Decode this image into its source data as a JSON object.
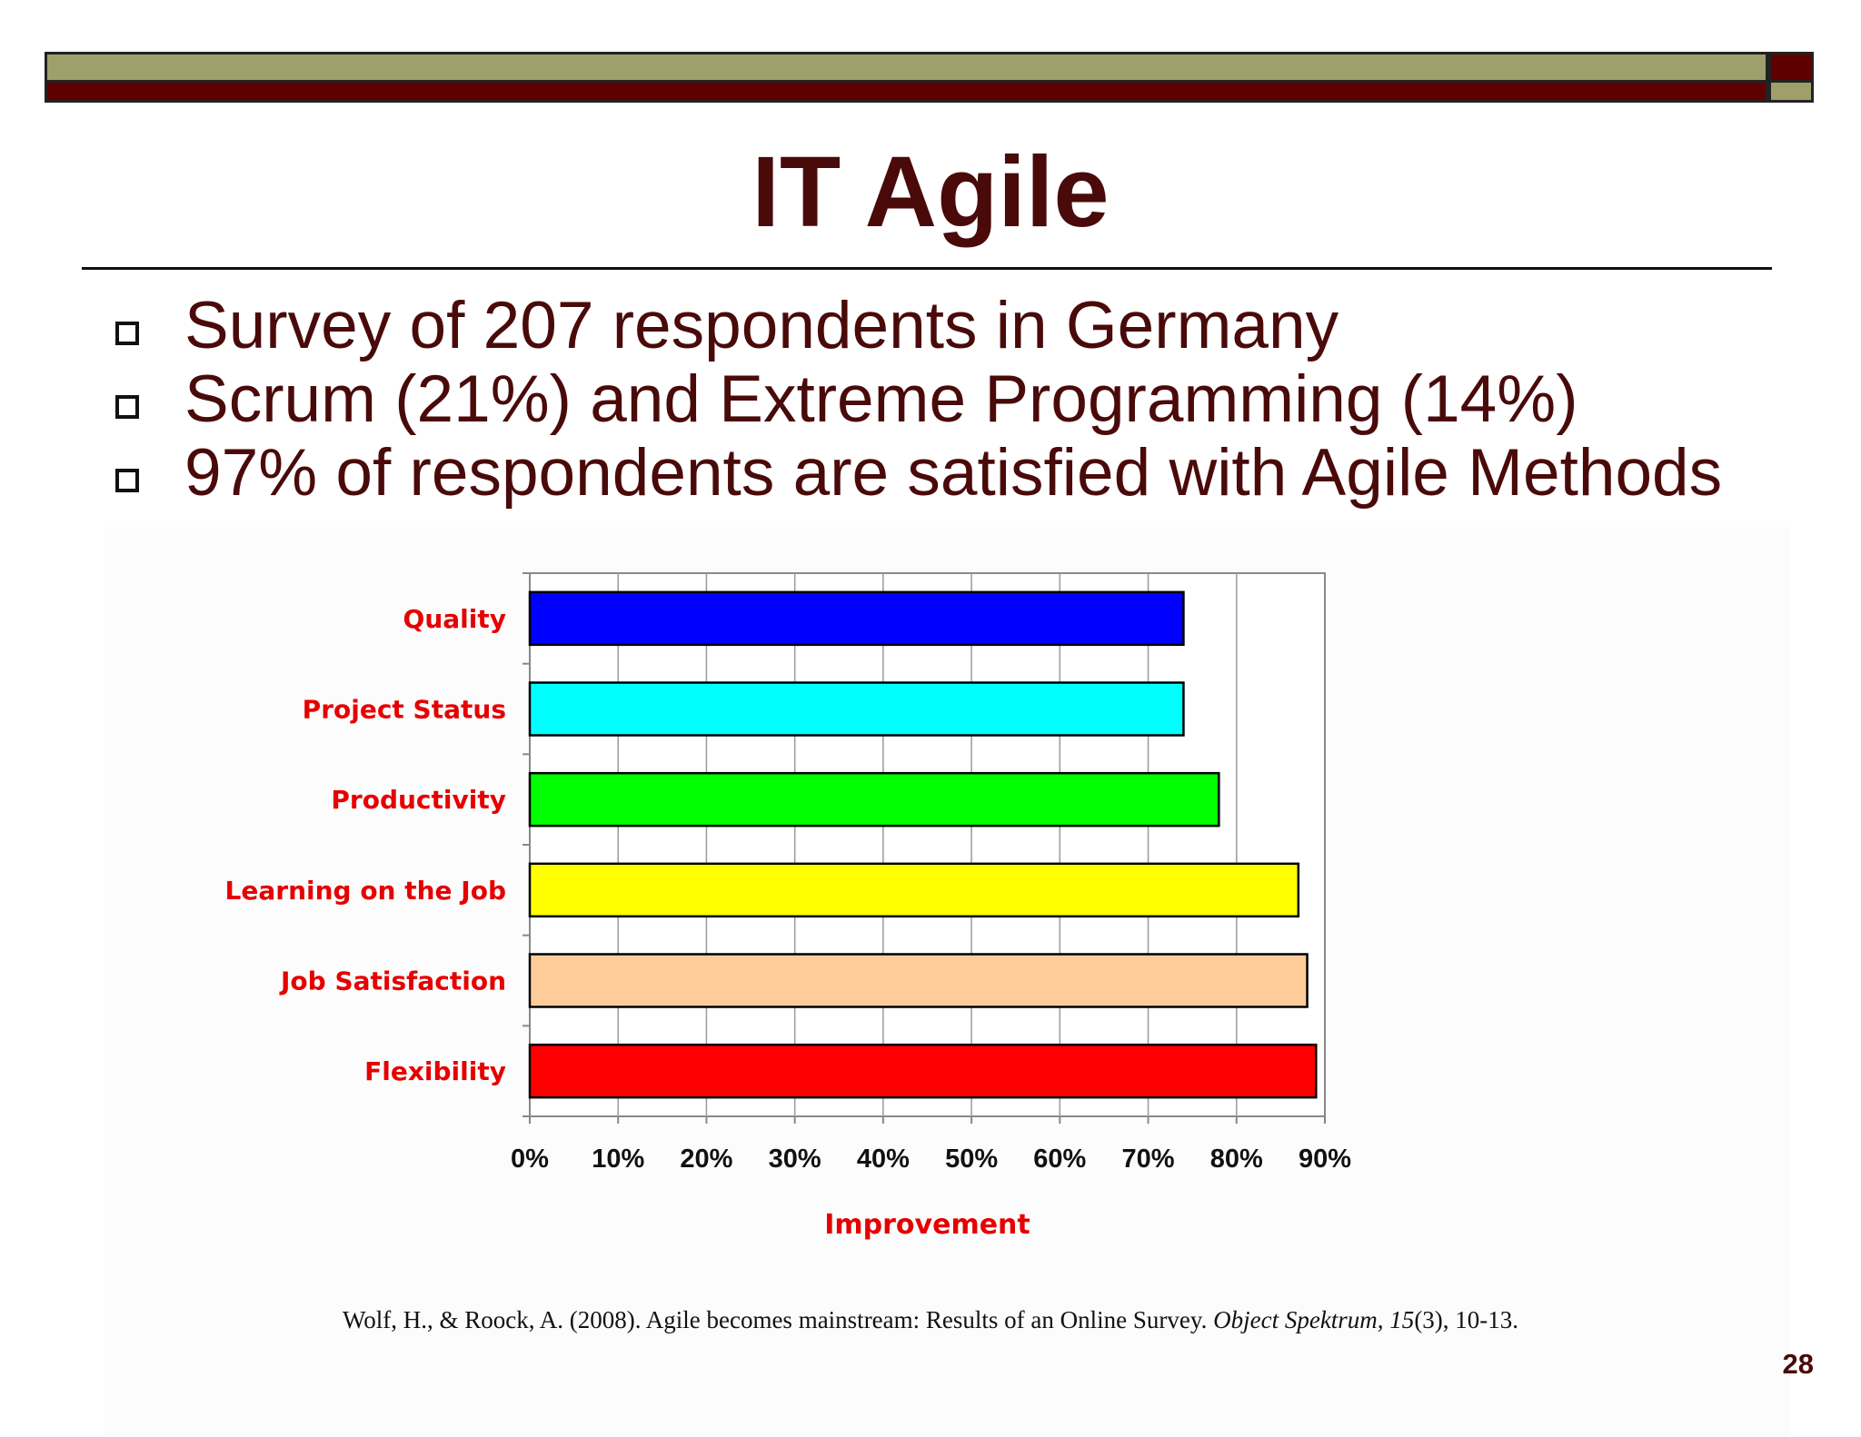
{
  "slide": {
    "title": "IT Agile",
    "bullets": [
      "Survey of 207 respondents in Germany",
      "Scrum (21%) and Extreme Programming (14%)",
      "97% of respondents are satisfied with Agile Methods"
    ],
    "citation": {
      "before": "Wolf, H., & Roock, A. (2008). Agile becomes mainstream: Results of an Online Survey. ",
      "journal": "Object Spektrum, 15",
      "after": "(3), 10-13."
    },
    "page_number": "28",
    "colors": {
      "title": "#4a0a0a",
      "olive": "#9f9f6c",
      "maroon": "#5e0000",
      "label_red": "#e60000"
    }
  },
  "chart_data": {
    "type": "bar",
    "orientation": "horizontal",
    "categories": [
      "Quality",
      "Project Status",
      "Productivity",
      "Learning on the Job",
      "Job Satisfaction",
      "Flexibility"
    ],
    "values": [
      74,
      74,
      78,
      87,
      88,
      89
    ],
    "bar_colors": [
      "#0000ff",
      "#00ffff",
      "#00ff00",
      "#ffff00",
      "#ffcc99",
      "#ff0000"
    ],
    "xlabel": "Improvement",
    "ylabel": "",
    "xlim": [
      0,
      90
    ],
    "x_ticks": [
      "0%",
      "10%",
      "20%",
      "30%",
      "40%",
      "50%",
      "60%",
      "70%",
      "80%",
      "90%"
    ],
    "grid": true,
    "legend": "none"
  }
}
